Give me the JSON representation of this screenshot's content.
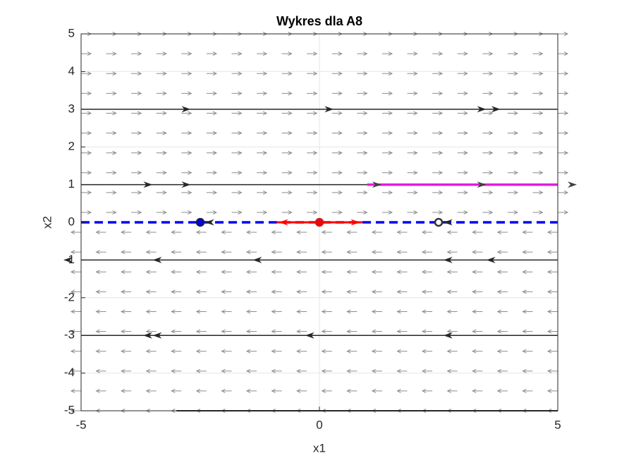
{
  "chart_data": {
    "type": "phase-portrait",
    "title": "Wykres dla A8",
    "xlabel": "x1",
    "ylabel": "x2",
    "xlim": [
      -5,
      5
    ],
    "ylim": [
      -5,
      5
    ],
    "xticks": [
      -5,
      0,
      5
    ],
    "yticks": [
      -5,
      -4,
      -3,
      -2,
      -1,
      0,
      1,
      2,
      3,
      4,
      5
    ],
    "grid": true,
    "vector_field": {
      "grid_points": 20,
      "color": "#8c8c8c"
    },
    "series": [
      {
        "color": "#262626",
        "width": 1.5,
        "x": [
          -5,
          5
        ],
        "y": [
          3,
          3
        ],
        "arrows": [
          -2.7,
          0.3,
          3.5,
          3.8
        ],
        "direction": 1
      },
      {
        "color": "#262626",
        "width": 1.5,
        "x": [
          -5,
          1
        ],
        "y": [
          1,
          1
        ],
        "arrows": [
          -3.5,
          -2.7
        ],
        "direction": 1
      },
      {
        "color": "#e01ee0",
        "width": 3.5,
        "x": [
          1,
          5
        ],
        "y": [
          1,
          1
        ],
        "arrows": [
          1.3,
          3.5,
          5.4
        ],
        "direction": 1,
        "arrow_color": "#404040"
      },
      {
        "color": "#262626",
        "width": 1.5,
        "x": [
          -5,
          5
        ],
        "y": [
          -1,
          -1
        ],
        "arrows": [
          -5.37,
          -3.5,
          -1.4,
          2.6,
          3.5
        ],
        "direction": -1
      },
      {
        "color": "#262626",
        "width": 1.5,
        "x": [
          -5,
          5
        ],
        "y": [
          -3,
          -3
        ],
        "arrows": [
          -3.7,
          -3.5,
          -0.3,
          2.6
        ],
        "direction": -1
      },
      {
        "color": "#262626",
        "width": 2,
        "x": [
          -3,
          5
        ],
        "y": [
          -5,
          -5
        ],
        "direction": -1
      },
      {
        "color": "#0000ff",
        "width": 3.5,
        "dash": true,
        "x": [
          -5,
          5
        ],
        "y": [
          0,
          0
        ],
        "arrows": [
          -2.4,
          2.6
        ],
        "direction": -1,
        "arrow_color": "#262626"
      },
      {
        "color": "#ff0000",
        "width": 3,
        "x": [
          0,
          -0.9
        ],
        "y": [
          0,
          0
        ],
        "arrows": [
          -0.85
        ],
        "direction": -1
      },
      {
        "color": "#ff0000",
        "width": 3,
        "x": [
          0,
          0.9
        ],
        "y": [
          0,
          0
        ],
        "arrows": [
          0.85
        ],
        "direction": 1
      }
    ],
    "points": {
      "x": [
        -2.5,
        0,
        2.5
      ],
      "y": [
        0,
        0,
        0
      ],
      "colors": [
        "#1a1a4d",
        "#cc1a1a",
        "#333333"
      ],
      "fills": [
        "#0000ff",
        "#ff0000",
        "#ffffff"
      ]
    }
  }
}
